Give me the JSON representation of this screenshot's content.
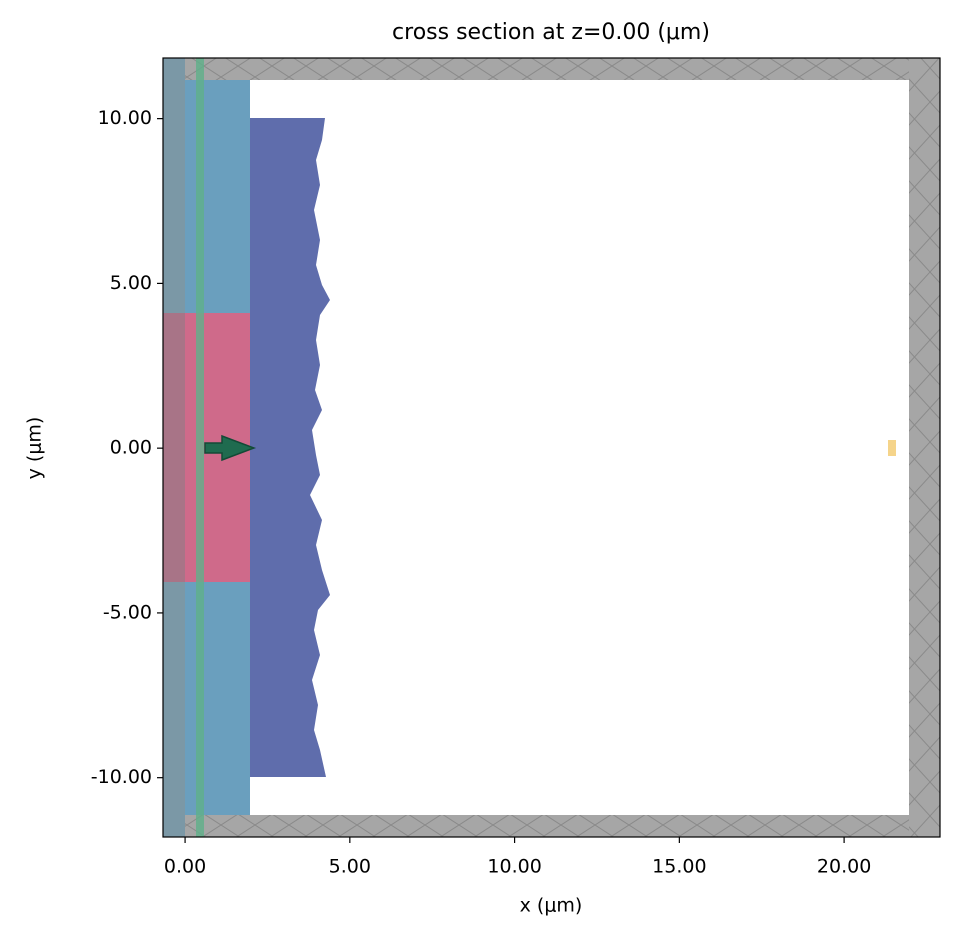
{
  "chart_data": {
    "type": "simulation-cross-section",
    "title": "cross section at z=0.00 (μm)",
    "x_label": "x (μm)",
    "y_label": "y (μm)",
    "xlim": [
      -0.67,
      22.91
    ],
    "ylim": [
      -11.8,
      11.84
    ],
    "xticks": [
      {
        "value": 0,
        "label": "0.00"
      },
      {
        "value": 5,
        "label": "5.00"
      },
      {
        "value": 10,
        "label": "10.00"
      },
      {
        "value": 15,
        "label": "15.00"
      },
      {
        "value": 20,
        "label": "20.00"
      }
    ],
    "yticks": [
      {
        "value": -10,
        "label": "-10.00"
      },
      {
        "value": -5,
        "label": "-5.00"
      },
      {
        "value": 0,
        "label": "0.00"
      },
      {
        "value": 5,
        "label": "5.00"
      },
      {
        "value": 10,
        "label": "10.00"
      }
    ],
    "grid": false
  }
}
